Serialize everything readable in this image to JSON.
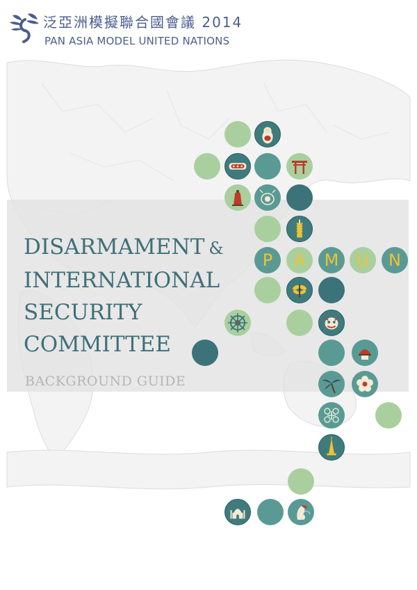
{
  "header": {
    "org_name_zh": "泛亞洲模擬聯合國會議 2014",
    "org_name_en": "PAN ASIA MODEL UNITED NATIONS"
  },
  "title": {
    "line1": "DISARMAMENT",
    "ampersand": "&",
    "line2": "INTERNATIONAL",
    "line3": "SECURITY",
    "line4": "COMMITTEE"
  },
  "subtitle": "BACKGROUND GUIDE",
  "pamun_letters": [
    "P",
    "A",
    "M",
    "U",
    "N"
  ],
  "colors": {
    "light_green": "#a9cf9e",
    "teal": "#5a9a95",
    "dark_teal": "#3c727a",
    "title_text": "#3f6f78",
    "letter_yellow": "#f1c232",
    "band_gray": "#e2e2e2"
  },
  "icons": [
    "nesting-doll-icon",
    "torii-gate-icon",
    "sushi-roll-icon",
    "bell-icon",
    "drum-icon",
    "taipei101-tower-icon",
    "dragonfly-icon",
    "ship-wheel-icon",
    "lion-dance-icon",
    "rice-hat-icon",
    "palm-tree-icon",
    "flower-icon",
    "knot-pattern-icon",
    "pagoda-stupa-icon",
    "taj-mahal-icon",
    "merlion-icon"
  ]
}
